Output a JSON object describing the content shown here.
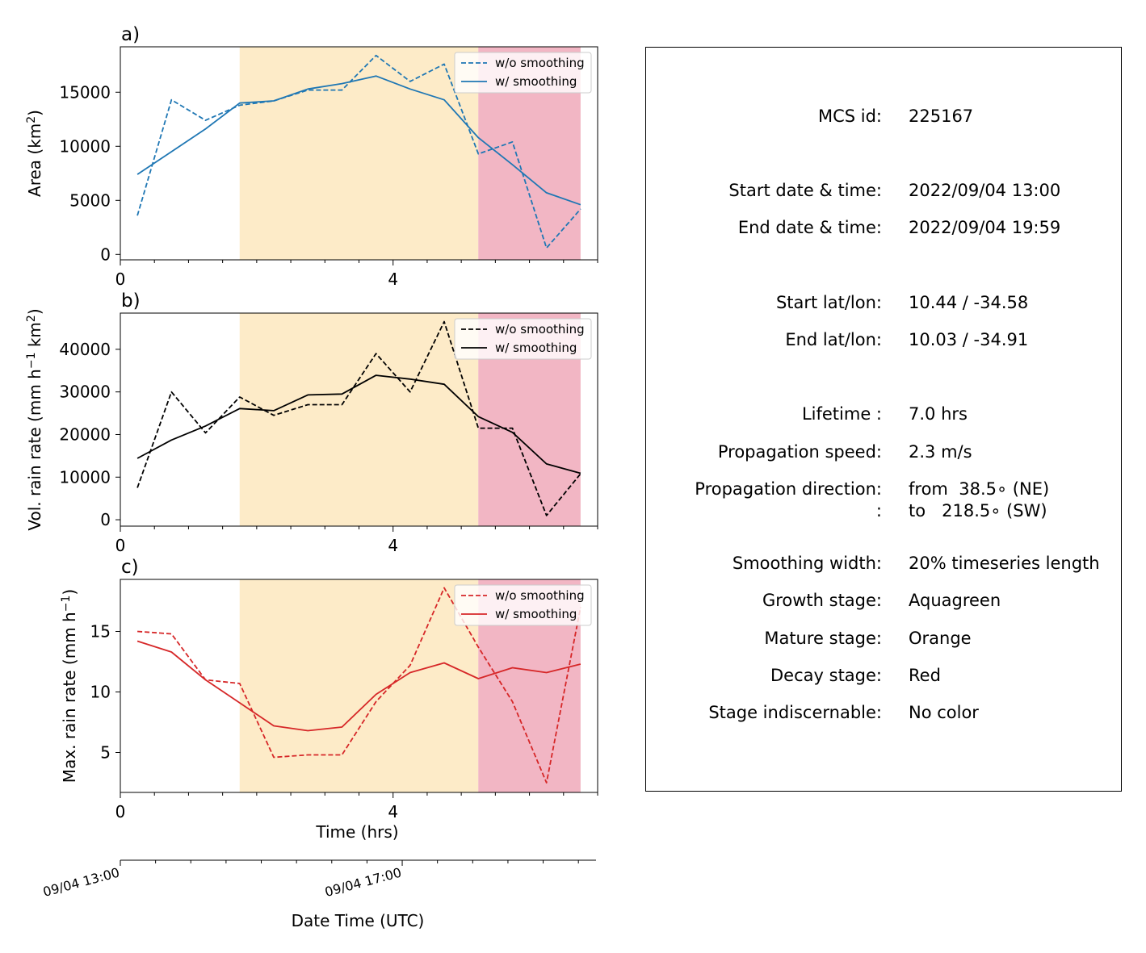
{
  "chart_data": [
    {
      "type": "line",
      "panel_label": "a)",
      "ylabel": "Area  (km$^2$)",
      "ylabel_main": "Area  (km",
      "ylabel_sup": "2",
      "ylabel_tail": ")",
      "color": "#1f77b4",
      "xlim": [
        0,
        7
      ],
      "ylim": [
        -500,
        19200
      ],
      "yticks": [
        0,
        5000,
        10000,
        15000
      ],
      "xticks": [
        0,
        4
      ],
      "x": [
        0.25,
        0.75,
        1.25,
        1.75,
        2.25,
        2.75,
        3.25,
        3.75,
        4.25,
        4.75,
        5.25,
        5.75,
        6.25,
        6.75
      ],
      "series": [
        {
          "name": "w/o smoothing",
          "dash": true,
          "values": [
            3600,
            14300,
            12400,
            13800,
            14200,
            15200,
            15200,
            18400,
            16000,
            17600,
            9300,
            10400,
            600,
            4200
          ]
        },
        {
          "name": "w/ smoothing",
          "dash": false,
          "values": [
            7400,
            9500,
            11600,
            14000,
            14200,
            15300,
            15800,
            16500,
            15300,
            14300,
            10800,
            8300,
            5700,
            4600
          ]
        }
      ]
    },
    {
      "type": "line",
      "panel_label": "b)",
      "ylabel_main": "Vol. rain rate (mm h",
      "ylabel_sup": "−1",
      "ylabel_mid": " km",
      "ylabel_sup2": "2",
      "ylabel_tail": ")",
      "color": "#000000",
      "xlim": [
        0,
        7
      ],
      "ylim": [
        -1500,
        48500
      ],
      "yticks": [
        0,
        10000,
        20000,
        30000,
        40000
      ],
      "xticks": [
        0,
        4
      ],
      "x": [
        0.25,
        0.75,
        1.25,
        1.75,
        2.25,
        2.75,
        3.25,
        3.75,
        4.25,
        4.75,
        5.25,
        5.75,
        6.25,
        6.75
      ],
      "series": [
        {
          "name": "w/o smoothing",
          "dash": true,
          "values": [
            7500,
            30000,
            20400,
            28800,
            24500,
            27000,
            27000,
            39000,
            30000,
            46500,
            21500,
            21500,
            1000,
            10800
          ]
        },
        {
          "name": "w/ smoothing",
          "dash": false,
          "values": [
            14400,
            18700,
            22000,
            26100,
            25600,
            29300,
            29500,
            33900,
            33000,
            31800,
            24200,
            20500,
            13100,
            10900
          ]
        }
      ]
    },
    {
      "type": "line",
      "panel_label": "c)",
      "ylabel_main": "Max. rain rate  (mm h",
      "ylabel_sup": "−1",
      "ylabel_tail": ")",
      "color": "#d62728",
      "xlim": [
        0,
        7
      ],
      "ylim": [
        1.7,
        19.3
      ],
      "yticks": [
        5,
        10,
        15
      ],
      "xticks": [
        0,
        4
      ],
      "xlabel": "Time (hrs)",
      "x": [
        0.25,
        0.75,
        1.25,
        1.75,
        2.25,
        2.75,
        3.25,
        3.75,
        4.25,
        4.75,
        5.25,
        5.75,
        6.25,
        6.75
      ],
      "series": [
        {
          "name": "w/o smoothing",
          "dash": true,
          "values": [
            15.0,
            14.8,
            11.0,
            10.7,
            4.6,
            4.8,
            4.8,
            9.2,
            12.2,
            18.6,
            13.7,
            9.2,
            2.5,
            17.0
          ]
        },
        {
          "name": "w/ smoothing",
          "dash": false,
          "values": [
            14.2,
            13.3,
            11.0,
            9.1,
            7.2,
            6.8,
            7.1,
            9.8,
            11.6,
            12.4,
            11.1,
            12.0,
            11.6,
            12.3
          ]
        }
      ]
    }
  ],
  "stages": {
    "mature": {
      "start": 1.75,
      "end": 5.25,
      "color": "#fdebc8"
    },
    "decay": {
      "start": 5.25,
      "end": 6.75,
      "color": "#f2b6c4"
    }
  },
  "datetime_axis": {
    "label": "Date Time (UTC)",
    "ticks": [
      {
        "x": 0,
        "label": "09/04 13:00"
      },
      {
        "x": 4,
        "label": "09/04 17:00"
      }
    ]
  },
  "info": {
    "rows": [
      {
        "label": "MCS id:",
        "value": "225167"
      },
      {
        "label": "Start date & time:",
        "value": "2022/09/04 13:00"
      },
      {
        "label": "End date & time:",
        "value": "2022/09/04 19:59"
      },
      {
        "label": "Start lat/lon:",
        "value": "10.44 / -34.58"
      },
      {
        "label": "End lat/lon:",
        "value": "10.03 / -34.91"
      },
      {
        "label": "Lifetime :",
        "value": "7.0 hrs"
      },
      {
        "label": "Propagation speed:",
        "value": "2.3 m/s"
      },
      {
        "label": "Propagation direction:",
        "value": "from  38.5∘ (NE)"
      },
      {
        "label": ":",
        "value": "to   218.5∘ (SW)"
      },
      {
        "label": "Smoothing width:",
        "value": "20% timeseries length"
      },
      {
        "label": "Growth stage:",
        "value": "Aquagreen"
      },
      {
        "label": "Mature stage:",
        "value": "Orange"
      },
      {
        "label": "Decay stage:",
        "value": "Red"
      },
      {
        "label": "Stage indiscernable:",
        "value": "No color"
      }
    ]
  }
}
